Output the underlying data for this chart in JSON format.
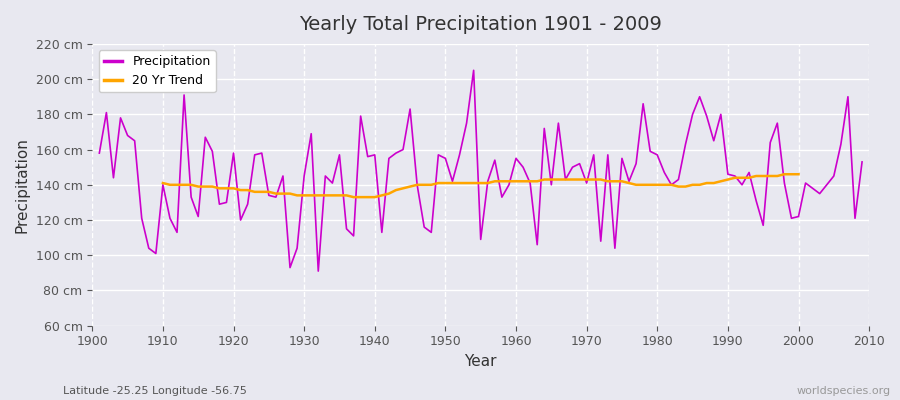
{
  "title": "Yearly Total Precipitation 1901 - 2009",
  "xlabel": "Year",
  "ylabel": "Precipitation",
  "bg_color": "#e8e8f0",
  "plot_bg_color": "#e8e8f0",
  "precip_color": "#cc00cc",
  "trend_color": "#ffa500",
  "years": [
    1901,
    1902,
    1903,
    1904,
    1905,
    1906,
    1907,
    1908,
    1909,
    1910,
    1911,
    1912,
    1913,
    1914,
    1915,
    1916,
    1917,
    1918,
    1919,
    1920,
    1921,
    1922,
    1923,
    1924,
    1925,
    1926,
    1927,
    1928,
    1929,
    1930,
    1931,
    1932,
    1933,
    1934,
    1935,
    1936,
    1937,
    1938,
    1939,
    1940,
    1941,
    1942,
    1943,
    1944,
    1945,
    1946,
    1947,
    1948,
    1949,
    1950,
    1951,
    1952,
    1953,
    1954,
    1955,
    1956,
    1957,
    1958,
    1959,
    1960,
    1961,
    1962,
    1963,
    1964,
    1965,
    1966,
    1967,
    1968,
    1969,
    1970,
    1971,
    1972,
    1973,
    1974,
    1975,
    1976,
    1977,
    1978,
    1979,
    1980,
    1981,
    1982,
    1983,
    1984,
    1985,
    1986,
    1987,
    1988,
    1989,
    1990,
    1991,
    1992,
    1993,
    1994,
    1995,
    1996,
    1997,
    1998,
    1999,
    2000,
    2001,
    2002,
    2003,
    2004,
    2005,
    2006,
    2007,
    2008,
    2009
  ],
  "precip": [
    158,
    181,
    144,
    178,
    168,
    165,
    121,
    104,
    101,
    140,
    121,
    113,
    191,
    133,
    122,
    167,
    159,
    129,
    130,
    158,
    120,
    129,
    157,
    158,
    134,
    133,
    145,
    93,
    104,
    145,
    169,
    91,
    145,
    141,
    157,
    115,
    111,
    179,
    156,
    157,
    113,
    155,
    158,
    160,
    183,
    140,
    116,
    113,
    157,
    155,
    142,
    157,
    175,
    205,
    109,
    142,
    154,
    133,
    140,
    155,
    150,
    141,
    106,
    172,
    140,
    175,
    143,
    150,
    152,
    141,
    157,
    108,
    157,
    104,
    155,
    142,
    152,
    186,
    159,
    157,
    147,
    140,
    143,
    163,
    180,
    190,
    179,
    165,
    180,
    146,
    145,
    140,
    147,
    131,
    117,
    164,
    175,
    141,
    121,
    122,
    141,
    138,
    135,
    140,
    145,
    163,
    190,
    121,
    153
  ],
  "trend_years": [
    1910,
    1911,
    1912,
    1913,
    1914,
    1915,
    1916,
    1917,
    1918,
    1919,
    1920,
    1921,
    1922,
    1923,
    1924,
    1925,
    1926,
    1927,
    1928,
    1929,
    1930,
    1931,
    1932,
    1933,
    1934,
    1935,
    1936,
    1937,
    1938,
    1939,
    1940,
    1941,
    1942,
    1943,
    1944,
    1945,
    1946,
    1947,
    1948,
    1949,
    1950,
    1951,
    1952,
    1953,
    1954,
    1955,
    1956,
    1957,
    1958,
    1959,
    1960,
    1961,
    1962,
    1963,
    1964,
    1965,
    1966,
    1967,
    1968,
    1969,
    1970,
    1971,
    1972,
    1973,
    1974,
    1975,
    1976,
    1977,
    1978,
    1979,
    1980,
    1981,
    1982,
    1983,
    1984,
    1985,
    1986,
    1987,
    1988,
    1989,
    1990,
    1991,
    1992,
    1993,
    1994,
    1995,
    1996,
    1997,
    1998,
    1999,
    2000
  ],
  "trend": [
    141,
    140,
    140,
    140,
    140,
    139,
    139,
    139,
    138,
    138,
    138,
    137,
    137,
    136,
    136,
    136,
    135,
    135,
    135,
    134,
    134,
    134,
    134,
    134,
    134,
    134,
    134,
    133,
    133,
    133,
    133,
    134,
    135,
    137,
    138,
    139,
    140,
    140,
    140,
    141,
    141,
    141,
    141,
    141,
    141,
    141,
    141,
    142,
    142,
    142,
    142,
    142,
    142,
    142,
    143,
    143,
    143,
    143,
    143,
    143,
    143,
    143,
    143,
    142,
    142,
    142,
    141,
    140,
    140,
    140,
    140,
    140,
    140,
    139,
    139,
    140,
    140,
    141,
    141,
    142,
    143,
    144,
    144,
    144,
    145,
    145,
    145,
    145,
    146,
    146,
    146
  ],
  "ylim": [
    60,
    220
  ],
  "yticks": [
    60,
    80,
    100,
    120,
    140,
    160,
    180,
    200,
    220
  ],
  "xlim": [
    1900,
    2010
  ],
  "grid_color": "#ffffff",
  "subtitle": "Latitude -25.25 Longitude -56.75",
  "watermark": "worldspecies.org",
  "legend_labels": [
    "Precipitation",
    "20 Yr Trend"
  ]
}
